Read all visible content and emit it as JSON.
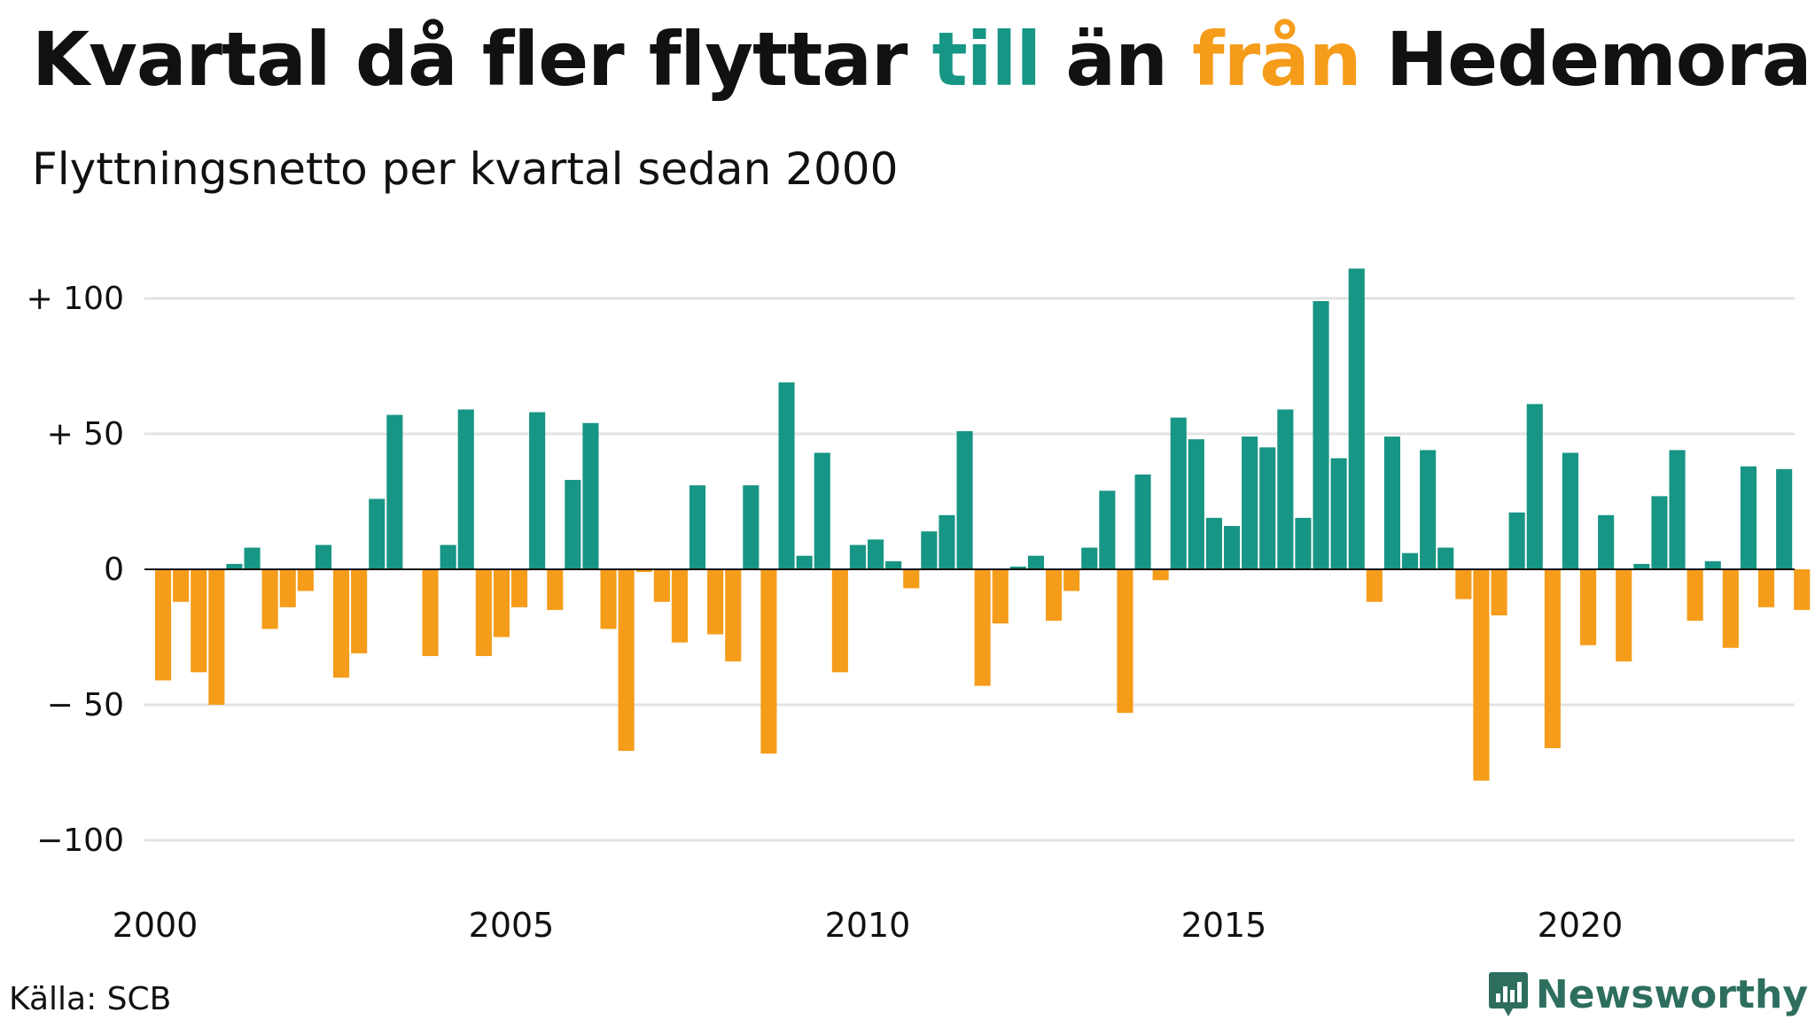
{
  "title": {
    "prefix": "Kvartal då fler flyttar ",
    "word_to": "till",
    "middle": " än ",
    "word_from": "från",
    "suffix": " Hedemora"
  },
  "subtitle": "Flyttningsnetto per kvartal sedan 2000",
  "source": "Källa: SCB",
  "brand": {
    "name": "Newsworthy",
    "icon": "newsworthy-logo-icon"
  },
  "colors": {
    "positive": "#179585",
    "negative": "#f59c1a",
    "grid": "#e3e3e3",
    "text": "#111111"
  },
  "chart_data": {
    "type": "bar",
    "x_start": "2000 Q1",
    "x_labels": [
      "2000",
      "2005",
      "2010",
      "2015",
      "2020"
    ],
    "y_ticks": [
      {
        "value": 100,
        "label": "+ 100"
      },
      {
        "value": 50,
        "label": "+  50"
      },
      {
        "value": 0,
        "label": "0"
      },
      {
        "value": -50,
        "label": "− 50"
      },
      {
        "value": -100,
        "label": "−100"
      }
    ],
    "ylim": [
      -120,
      120
    ],
    "grid": true,
    "values": [
      -41,
      -12,
      -38,
      -50,
      2,
      8,
      -22,
      -14,
      -8,
      9,
      -40,
      -31,
      26,
      57,
      0,
      -32,
      9,
      59,
      -32,
      -25,
      -14,
      58,
      -15,
      33,
      54,
      -22,
      -67,
      -1,
      -12,
      -27,
      31,
      -24,
      -34,
      31,
      -68,
      69,
      5,
      43,
      -38,
      9,
      11,
      3,
      -7,
      14,
      20,
      51,
      -43,
      -20,
      1,
      5,
      -19,
      -8,
      8,
      29,
      -53,
      35,
      -4,
      56,
      48,
      19,
      16,
      49,
      45,
      59,
      19,
      99,
      41,
      111,
      -12,
      49,
      6,
      44,
      8,
      -11,
      -78,
      -17,
      21,
      61,
      -66,
      43,
      -28,
      20,
      -34,
      2,
      27,
      44,
      -19,
      3,
      -29,
      38,
      -14,
      37,
      -15
    ]
  }
}
